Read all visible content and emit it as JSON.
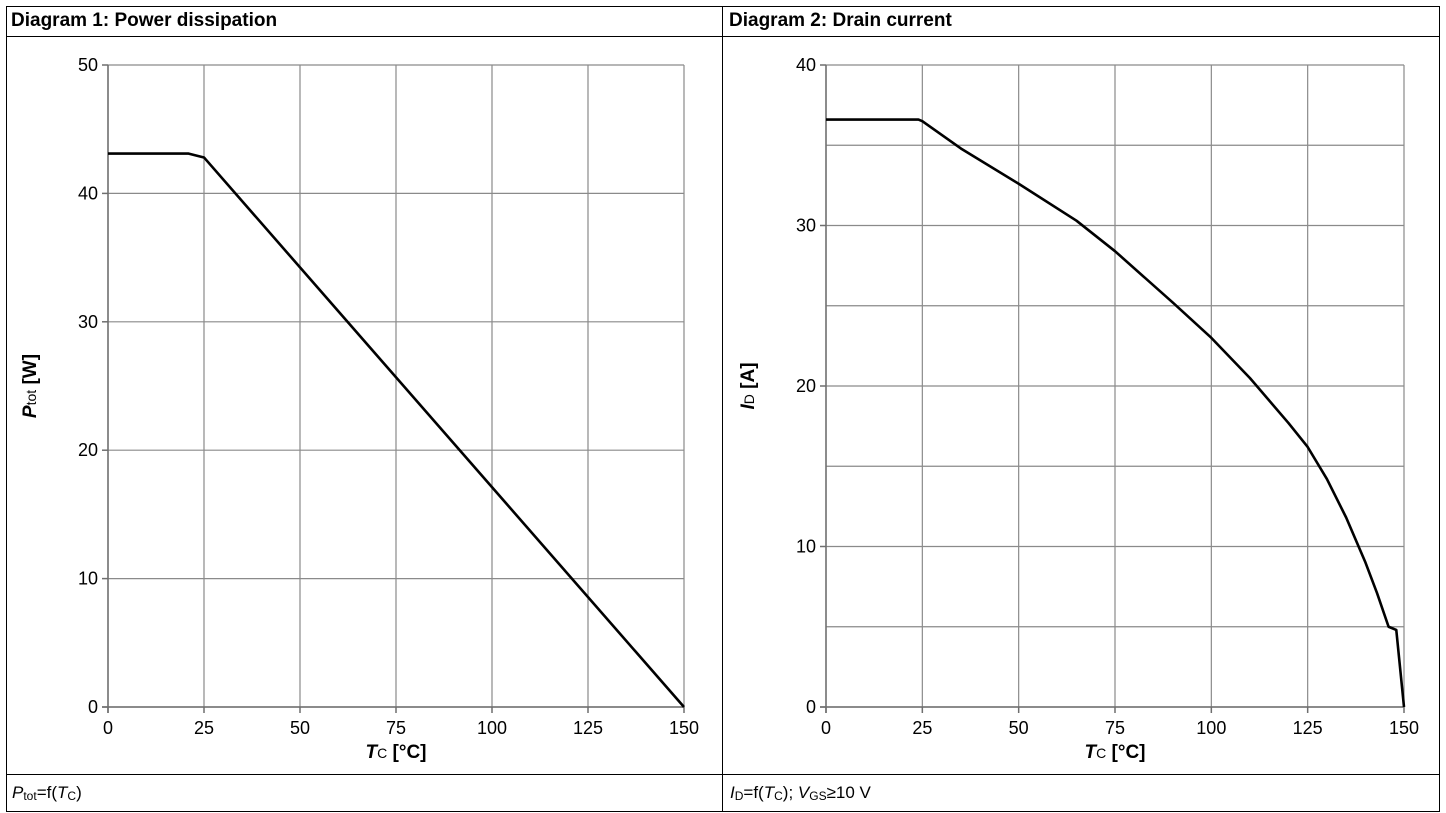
{
  "header": {
    "left_title": "Diagram 1: Power dissipation",
    "right_title": "Diagram 2: Drain current"
  },
  "footer": {
    "left": {
      "symbol": "P",
      "symbol_sub": "tot",
      "eq": "=f(",
      "arg": "T",
      "arg_sub": "C",
      "tail": ")"
    },
    "right": {
      "symbol": "I",
      "symbol_sub": "D",
      "eq": "=f(",
      "arg": "T",
      "arg_sub": "C",
      "mid": "); ",
      "cond": "V",
      "cond_sub": "GS",
      "cond_tail": "≥10 V"
    }
  },
  "chart_data": [
    {
      "type": "line",
      "title": "Diagram 1: Power dissipation",
      "xlabel": {
        "main": "T",
        "sub": "C",
        "unit": " [°C]"
      },
      "ylabel": {
        "main": "P",
        "sub": "tot",
        "unit": " [W]"
      },
      "xlim": [
        0,
        150
      ],
      "ylim": [
        0,
        50
      ],
      "xticks": [
        0,
        25,
        50,
        75,
        100,
        125,
        150
      ],
      "yticks": [
        0,
        10,
        20,
        30,
        40,
        50
      ],
      "grid": true,
      "series": [
        {
          "x": [
            0,
            21,
            25,
            150
          ],
          "y": [
            43.1,
            43.1,
            42.8,
            0
          ]
        }
      ]
    },
    {
      "type": "line",
      "title": "Diagram 2: Drain current",
      "xlabel": {
        "main": "T",
        "sub": "C",
        "unit": " [°C]"
      },
      "ylabel": {
        "main": "I",
        "sub": "D",
        "unit": " [A]"
      },
      "xlim": [
        0,
        150
      ],
      "ylim": [
        0,
        40
      ],
      "xticks": [
        0,
        25,
        50,
        75,
        100,
        125,
        150
      ],
      "yticks": [
        0,
        10,
        20,
        30,
        40
      ],
      "ygrid_step": 5,
      "grid": true,
      "series": [
        {
          "x": [
            0,
            24,
            25,
            35,
            50,
            65,
            75,
            90,
            100,
            110,
            120,
            125,
            130,
            135,
            140,
            143,
            146,
            148,
            150
          ],
          "y": [
            36.6,
            36.6,
            36.5,
            34.8,
            32.6,
            30.3,
            28.4,
            25.2,
            23.0,
            20.5,
            17.7,
            16.2,
            14.2,
            11.8,
            9.0,
            7.1,
            5.0,
            4.8,
            0
          ]
        }
      ]
    }
  ]
}
